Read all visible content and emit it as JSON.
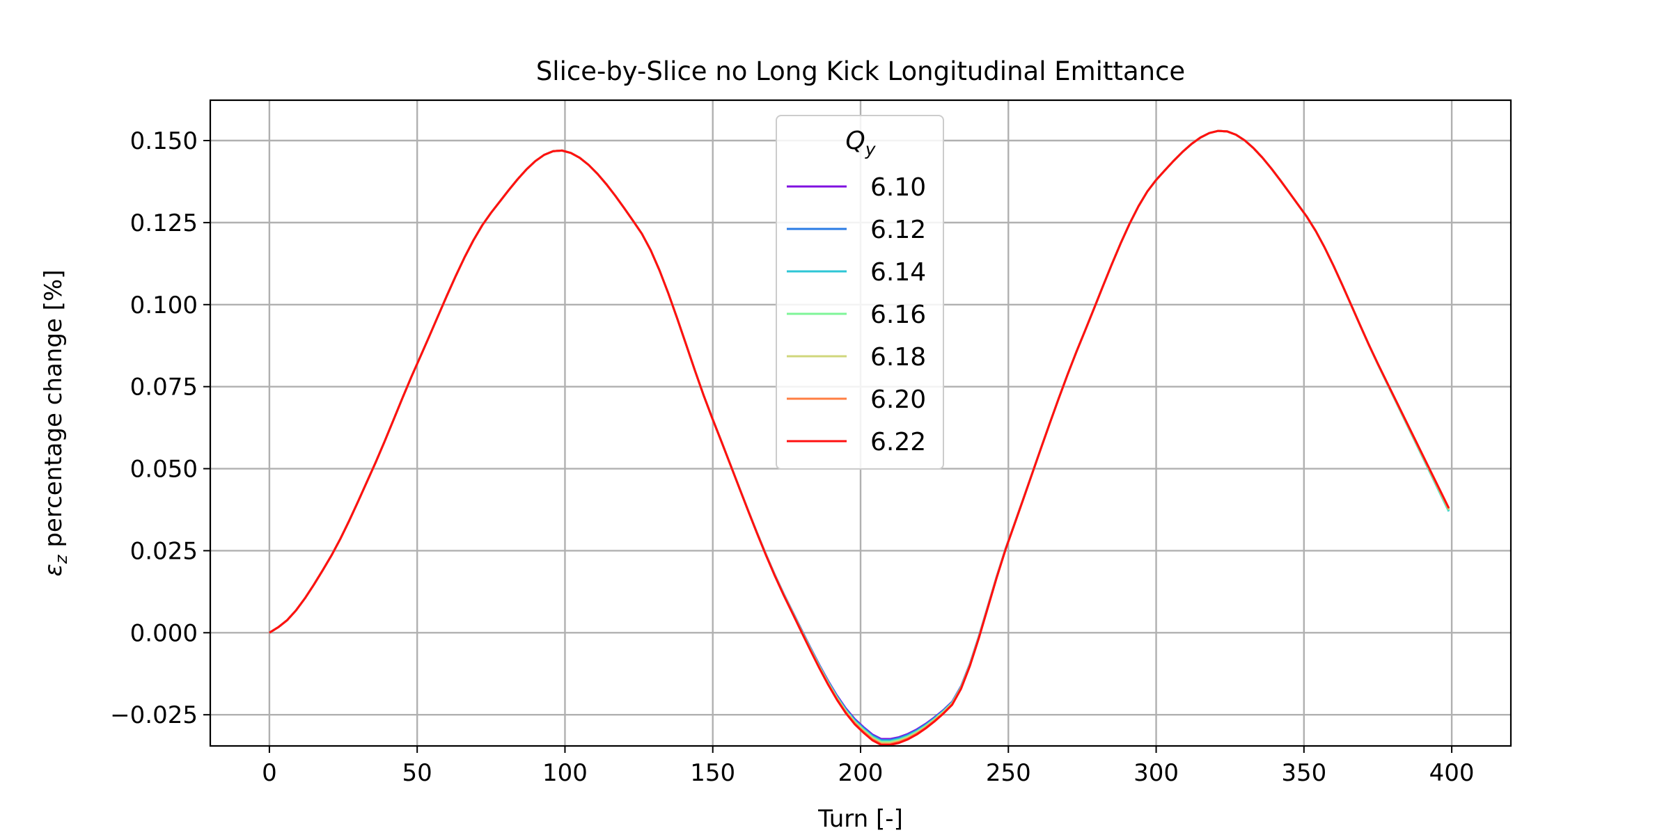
{
  "chart_data": {
    "type": "line",
    "title": "Slice-by-Slice no Long Kick Longitudinal Emittance",
    "xlabel": "Turn [-]",
    "ylabel_symbol": "ε",
    "ylabel_subscript": "z",
    "ylabel_text": " percentage change [%]",
    "xlim": [
      -20,
      420
    ],
    "ylim": [
      -0.0345,
      0.1623
    ],
    "xticks": [
      0,
      50,
      100,
      150,
      200,
      250,
      300,
      350,
      400
    ],
    "yticks": [
      -0.025,
      0.0,
      0.025,
      0.05,
      0.075,
      0.1,
      0.125,
      0.15
    ],
    "ytick_labels": [
      "−0.025",
      "0.000",
      "0.025",
      "0.050",
      "0.075",
      "0.100",
      "0.125",
      "0.150"
    ],
    "grid": true,
    "legend": {
      "title": "Q",
      "title_subscript": "y",
      "placement": "upper center"
    },
    "model": {
      "turn_start": 0,
      "turn_end": 399,
      "baseline": {
        "turns": [
          0,
          5,
          20,
          35,
          50,
          75,
          98,
          125,
          150,
          175,
          200,
          208,
          230,
          250,
          275,
          300,
          322,
          350,
          375,
          399
        ],
        "values": [
          0.0,
          0.003,
          0.022,
          0.05,
          0.082,
          0.128,
          0.147,
          0.123,
          0.065,
          0.01,
          -0.028,
          -0.0325,
          -0.022,
          0.028,
          0.09,
          0.138,
          0.153,
          0.128,
          0.082,
          0.038
        ]
      }
    },
    "series": [
      {
        "name": "6.10",
        "color": "#7f10e0",
        "trough_offset": 0.0,
        "end_value": 0.0375
      },
      {
        "name": "6.12",
        "color": "#2a7be4",
        "trough_offset": -0.0003,
        "end_value": 0.0372
      },
      {
        "name": "6.14",
        "color": "#2ec6d6",
        "trough_offset": -0.0006,
        "end_value": 0.037
      },
      {
        "name": "6.16",
        "color": "#7ff598",
        "trough_offset": -0.0009,
        "end_value": 0.0373
      },
      {
        "name": "6.18",
        "color": "#d0d77c",
        "trough_offset": -0.0012,
        "end_value": 0.0376
      },
      {
        "name": "6.20",
        "color": "#ff7f43",
        "trough_offset": -0.0015,
        "end_value": 0.0378
      },
      {
        "name": "6.22",
        "color": "#ff1010",
        "trough_offset": -0.0018,
        "end_value": 0.038
      }
    ]
  }
}
